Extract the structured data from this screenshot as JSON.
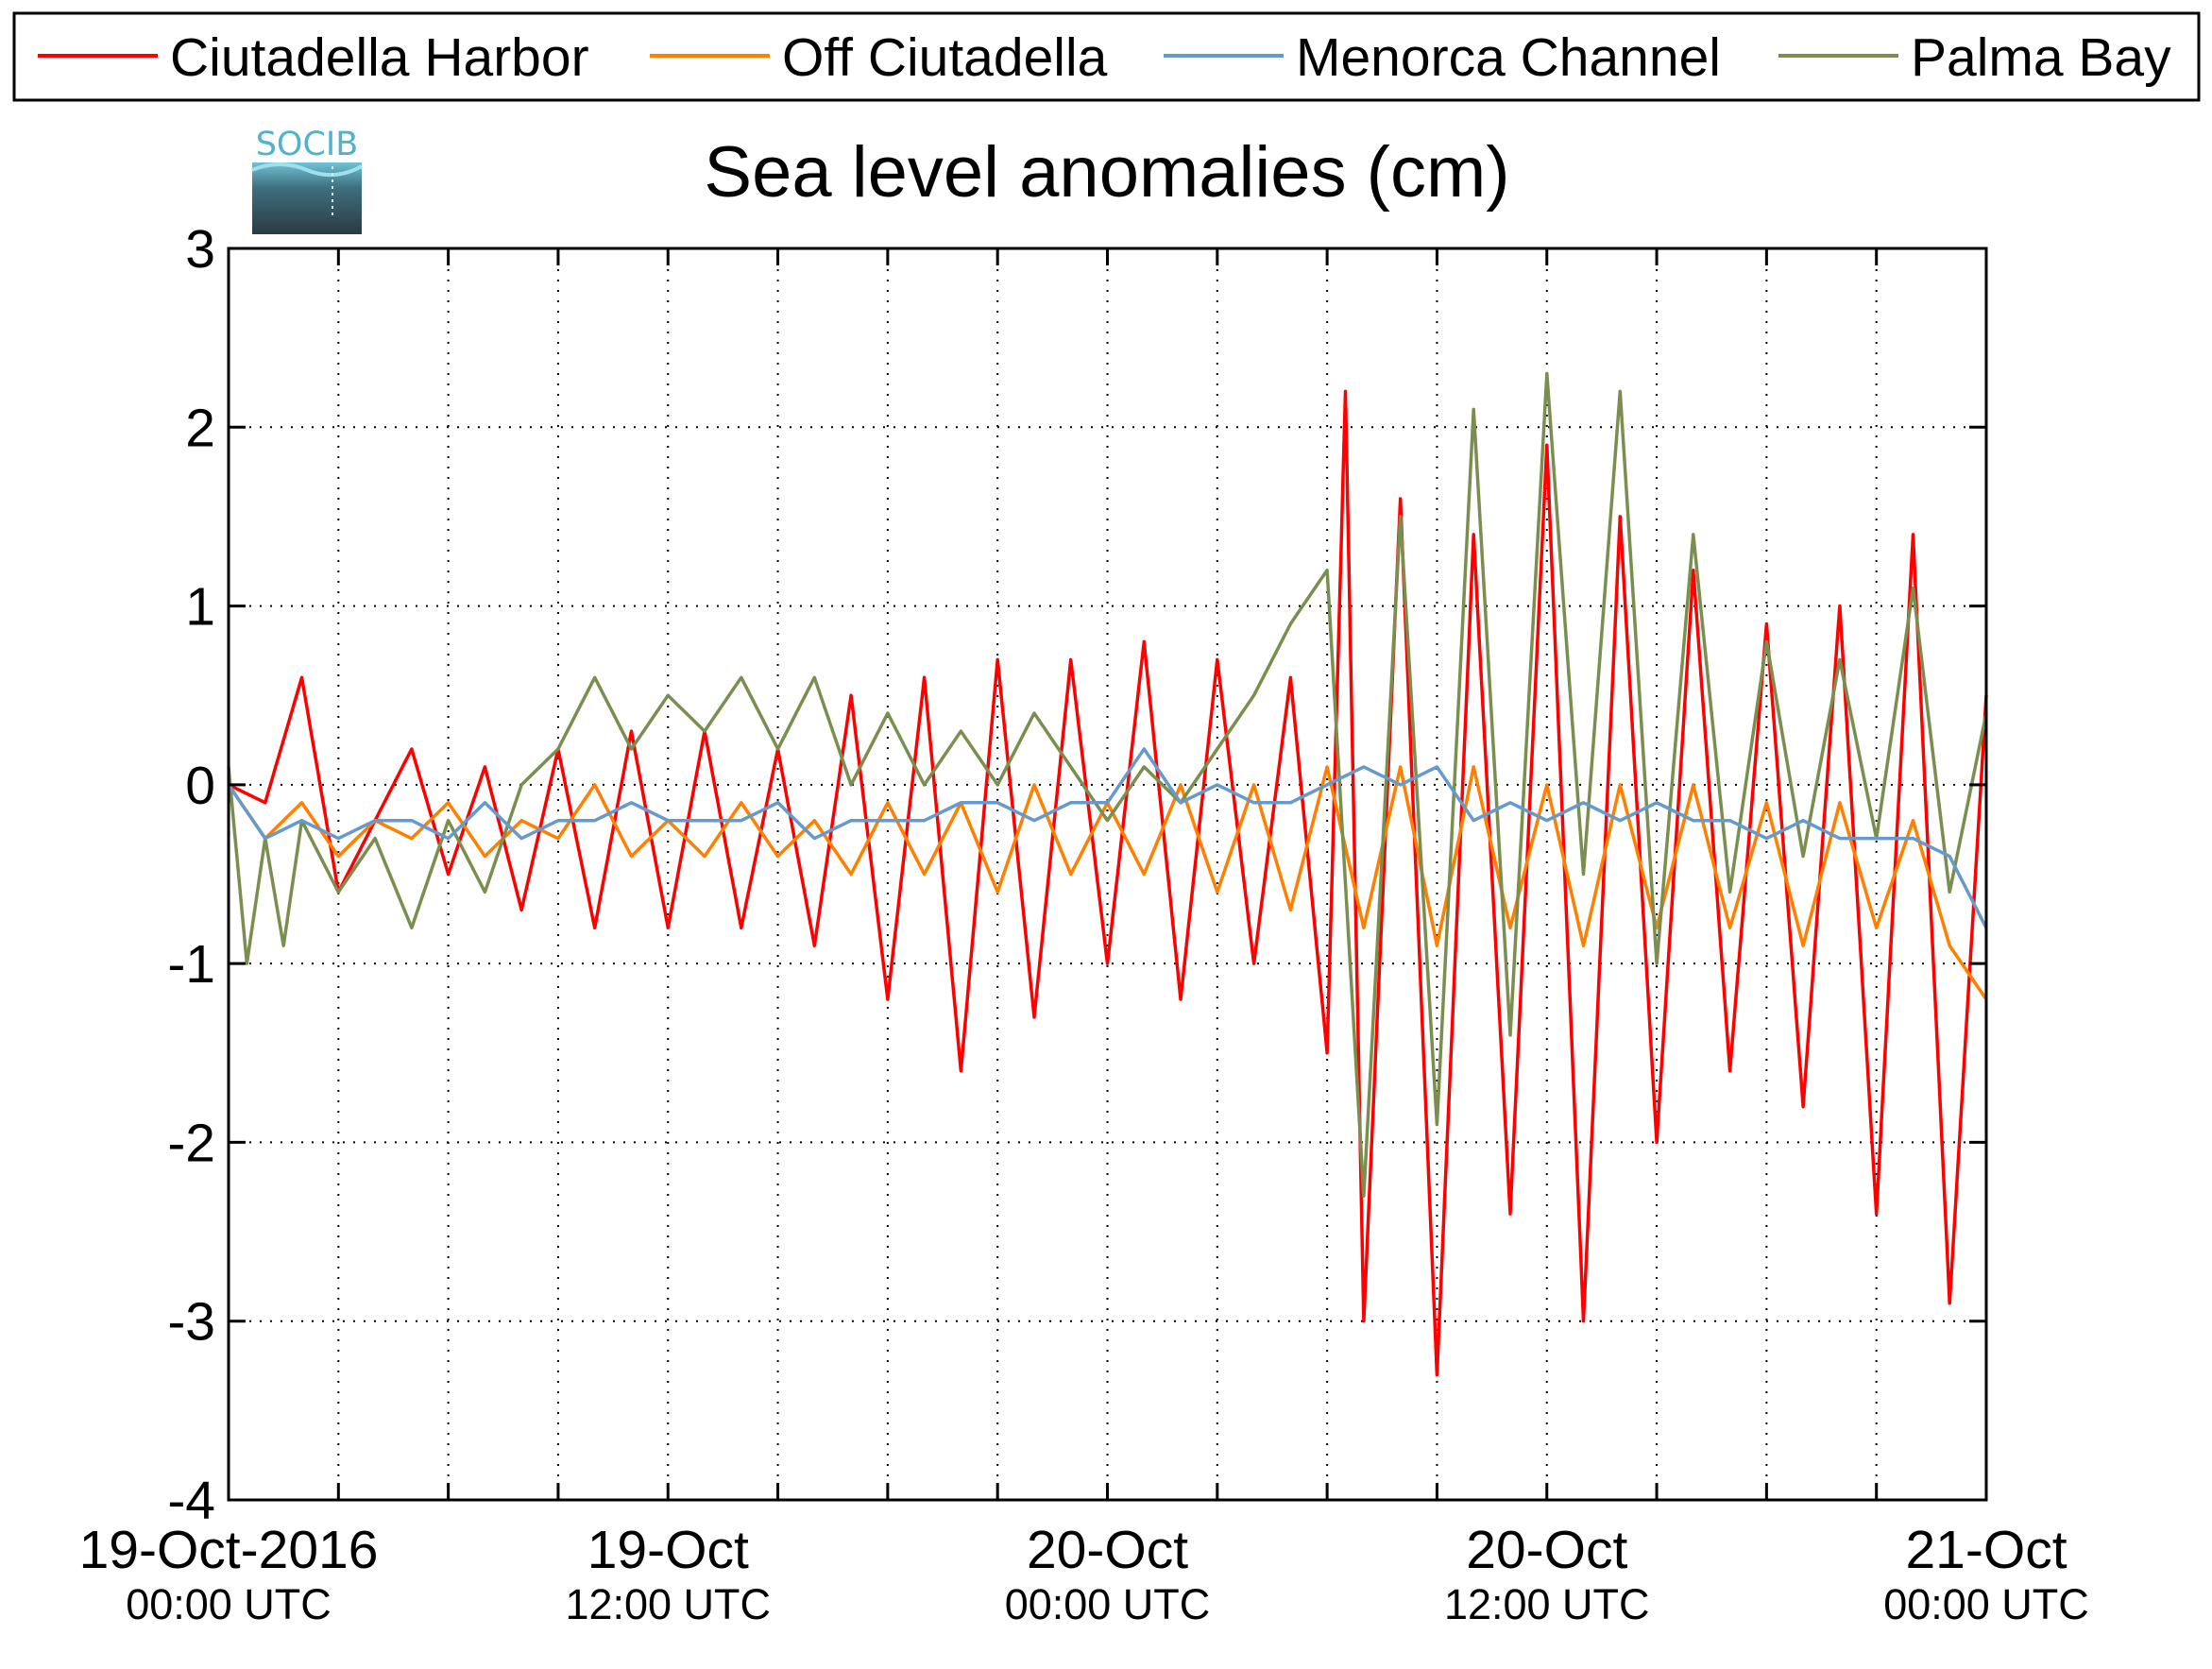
{
  "logo": {
    "text": "SOCIB"
  },
  "chart_data": {
    "type": "line",
    "title": "Sea level anomalies (cm)",
    "xlabel": "",
    "ylabel": "",
    "ylim": [
      -4,
      3
    ],
    "xlim": [
      "2016-10-19T00:00Z",
      "2016-10-21T00:00Z"
    ],
    "y_ticks": [
      "3",
      "2",
      "1",
      "0",
      "-1",
      "-2",
      "-3",
      "-4"
    ],
    "y_tick_values": [
      3,
      2,
      1,
      0,
      -1,
      -2,
      -3,
      -4
    ],
    "x_tick_hours": [
      0,
      3,
      6,
      9,
      12,
      15,
      18,
      21,
      24,
      27,
      30,
      33,
      36,
      39,
      42,
      45,
      48
    ],
    "x_labels": [
      {
        "hour": 0,
        "date": "19-Oct-2016",
        "time": "00:00 UTC"
      },
      {
        "hour": 12,
        "date": "19-Oct",
        "time": "12:00 UTC"
      },
      {
        "hour": 24,
        "date": "20-Oct",
        "time": "00:00 UTC"
      },
      {
        "hour": 36,
        "date": "20-Oct",
        "time": "12:00 UTC"
      },
      {
        "hour": 48,
        "date": "21-Oct",
        "time": "00:00 UTC"
      }
    ],
    "grid": true,
    "legend_placement": "top",
    "series": [
      {
        "name": "Ciutadella Harbor",
        "color": "#ff0000",
        "x": [
          0,
          1,
          2,
          3,
          4,
          5,
          6,
          7,
          8,
          9,
          10,
          11,
          12,
          13,
          14,
          15,
          16,
          17,
          18,
          19,
          20,
          21,
          22,
          23,
          24,
          25,
          26,
          27,
          28,
          29,
          30,
          30.5,
          31,
          32,
          33,
          34,
          35,
          36,
          37,
          38,
          39,
          40,
          41,
          42,
          43,
          44,
          45,
          46,
          47,
          48
        ],
        "y": [
          0.0,
          -0.1,
          0.6,
          -0.6,
          -0.2,
          0.2,
          -0.5,
          0.1,
          -0.7,
          0.2,
          -0.8,
          0.3,
          -0.8,
          0.3,
          -0.8,
          0.2,
          -0.9,
          0.5,
          -1.2,
          0.6,
          -1.6,
          0.7,
          -1.3,
          0.7,
          -1.0,
          0.8,
          -1.2,
          0.7,
          -1.0,
          0.6,
          -1.5,
          2.2,
          -3.0,
          1.6,
          -3.3,
          1.4,
          -2.4,
          1.9,
          -3.0,
          1.5,
          -2.0,
          1.2,
          -1.6,
          0.9,
          -1.8,
          1.0,
          -2.4,
          1.4,
          -2.9,
          0.5
        ]
      },
      {
        "name": "Off Ciutadella",
        "color": "#ff8000",
        "x": [
          0,
          1,
          2,
          3,
          4,
          5,
          6,
          7,
          8,
          9,
          10,
          11,
          12,
          13,
          14,
          15,
          16,
          17,
          18,
          19,
          20,
          21,
          22,
          23,
          24,
          25,
          26,
          27,
          28,
          29,
          30,
          31,
          32,
          33,
          34,
          35,
          36,
          37,
          38,
          39,
          40,
          41,
          42,
          43,
          44,
          45,
          46,
          47,
          48
        ],
        "y": [
          0.0,
          -0.3,
          -0.1,
          -0.4,
          -0.2,
          -0.3,
          -0.1,
          -0.4,
          -0.2,
          -0.3,
          0.0,
          -0.4,
          -0.2,
          -0.4,
          -0.1,
          -0.4,
          -0.2,
          -0.5,
          -0.1,
          -0.5,
          -0.1,
          -0.6,
          0.0,
          -0.5,
          -0.1,
          -0.5,
          0.0,
          -0.6,
          0.0,
          -0.7,
          0.1,
          -0.8,
          0.1,
          -0.9,
          0.1,
          -0.8,
          0.0,
          -0.9,
          0.0,
          -0.8,
          0.0,
          -0.8,
          -0.1,
          -0.9,
          -0.1,
          -0.8,
          -0.2,
          -0.9,
          -1.2
        ]
      },
      {
        "name": "Menorca Channel",
        "color": "#6699cc",
        "x": [
          0,
          1,
          2,
          3,
          4,
          5,
          6,
          7,
          8,
          9,
          10,
          11,
          12,
          13,
          14,
          15,
          16,
          17,
          18,
          19,
          20,
          21,
          22,
          23,
          24,
          25,
          26,
          27,
          28,
          29,
          30,
          31,
          32,
          33,
          34,
          35,
          36,
          37,
          38,
          39,
          40,
          41,
          42,
          43,
          44,
          45,
          46,
          47,
          48
        ],
        "y": [
          0.0,
          -0.3,
          -0.2,
          -0.3,
          -0.2,
          -0.2,
          -0.3,
          -0.1,
          -0.3,
          -0.2,
          -0.2,
          -0.1,
          -0.2,
          -0.2,
          -0.2,
          -0.1,
          -0.3,
          -0.2,
          -0.2,
          -0.2,
          -0.1,
          -0.1,
          -0.2,
          -0.1,
          -0.1,
          0.2,
          -0.1,
          0.0,
          -0.1,
          -0.1,
          0.0,
          0.1,
          0.0,
          0.1,
          -0.2,
          -0.1,
          -0.2,
          -0.1,
          -0.2,
          -0.1,
          -0.2,
          -0.2,
          -0.3,
          -0.2,
          -0.3,
          -0.3,
          -0.3,
          -0.4,
          -0.8
        ]
      },
      {
        "name": "Palma Bay",
        "color": "#7a8f4f",
        "x": [
          0,
          0.5,
          1,
          1.5,
          2,
          3,
          4,
          5,
          6,
          7,
          8,
          9,
          10,
          11,
          12,
          13,
          14,
          15,
          16,
          17,
          18,
          19,
          20,
          21,
          22,
          23,
          24,
          25,
          26,
          27,
          28,
          29,
          30,
          31,
          32,
          33,
          34,
          35,
          36,
          37,
          38,
          39,
          40,
          41,
          42,
          43,
          44,
          45,
          46,
          47,
          48
        ],
        "y": [
          0.1,
          -1.0,
          -0.3,
          -0.9,
          -0.2,
          -0.6,
          -0.3,
          -0.8,
          -0.2,
          -0.6,
          0.0,
          0.2,
          0.6,
          0.2,
          0.5,
          0.3,
          0.6,
          0.2,
          0.6,
          0.0,
          0.4,
          0.0,
          0.3,
          0.0,
          0.4,
          0.1,
          -0.2,
          0.1,
          -0.1,
          0.2,
          0.5,
          0.9,
          1.2,
          -2.3,
          1.5,
          -1.9,
          2.1,
          -1.4,
          2.3,
          -0.5,
          2.2,
          -1.0,
          1.4,
          -0.6,
          0.8,
          -0.4,
          0.7,
          -0.3,
          1.1,
          -0.6,
          0.4
        ]
      }
    ]
  }
}
